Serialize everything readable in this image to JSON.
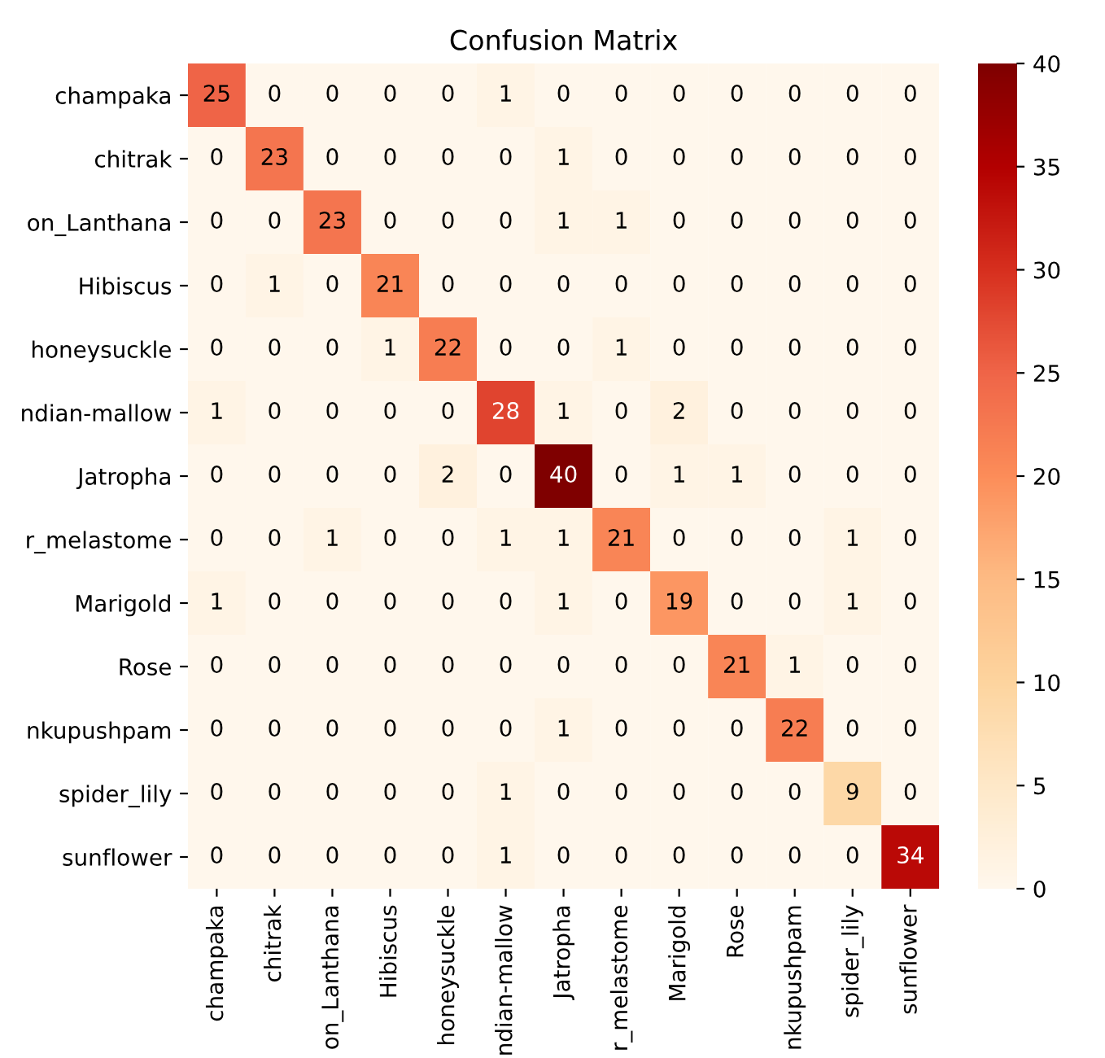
{
  "chart_data": {
    "type": "heatmap",
    "title": "Confusion Matrix",
    "categories": [
      "champaka",
      "chitrak",
      "on_Lanthana",
      "Hibiscus",
      "honeysuckle",
      "ndian-mallow",
      "Jatropha",
      "r_melastome",
      "Marigold",
      "Rose",
      "nkupushpam",
      "spider_lily",
      "sunflower"
    ],
    "y_categories": [
      "champaka",
      "chitrak",
      "on_Lanthana",
      "Hibiscus",
      "honeysuckle",
      "ndian-mallow",
      "Jatropha",
      "r_melastome",
      "Marigold",
      "Rose",
      "nkupushpam",
      "spider_lily",
      "sunflower"
    ],
    "cells": [
      [
        25,
        0,
        0,
        0,
        0,
        1,
        0,
        0,
        0,
        0,
        0,
        0,
        0
      ],
      [
        0,
        23,
        0,
        0,
        0,
        0,
        1,
        0,
        0,
        0,
        0,
        0,
        0
      ],
      [
        0,
        0,
        23,
        0,
        0,
        0,
        1,
        1,
        0,
        0,
        0,
        0,
        0
      ],
      [
        0,
        1,
        0,
        21,
        0,
        0,
        0,
        0,
        0,
        0,
        0,
        0,
        0
      ],
      [
        0,
        0,
        0,
        1,
        22,
        0,
        0,
        1,
        0,
        0,
        0,
        0,
        0
      ],
      [
        1,
        0,
        0,
        0,
        0,
        28,
        1,
        0,
        2,
        0,
        0,
        0,
        0
      ],
      [
        0,
        0,
        0,
        0,
        2,
        0,
        40,
        0,
        1,
        1,
        0,
        0,
        0
      ],
      [
        0,
        0,
        1,
        0,
        0,
        1,
        1,
        21,
        0,
        0,
        0,
        1,
        0
      ],
      [
        1,
        0,
        0,
        0,
        0,
        0,
        1,
        0,
        19,
        0,
        0,
        1,
        0
      ],
      [
        0,
        0,
        0,
        0,
        0,
        0,
        0,
        0,
        0,
        21,
        1,
        0,
        0
      ],
      [
        0,
        0,
        0,
        0,
        0,
        0,
        1,
        0,
        0,
        0,
        22,
        0,
        0
      ],
      [
        0,
        0,
        0,
        0,
        0,
        1,
        0,
        0,
        0,
        0,
        0,
        9,
        0
      ],
      [
        0,
        0,
        0,
        0,
        0,
        1,
        0,
        0,
        0,
        0,
        0,
        0,
        34
      ]
    ],
    "clim": [
      0,
      40
    ],
    "cticks": [
      0,
      5,
      10,
      15,
      20,
      25,
      30,
      35,
      40
    ],
    "data_labels": true
  }
}
